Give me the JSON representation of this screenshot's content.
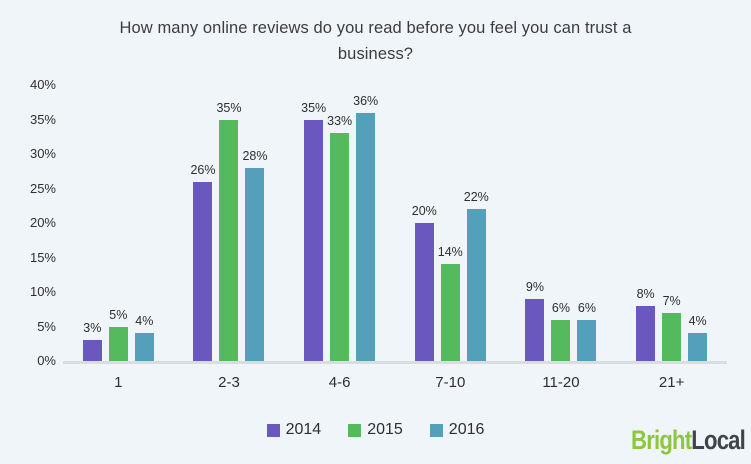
{
  "chart_data": {
    "type": "bar",
    "title": "How many online reviews do you read before you feel you can trust a business?",
    "categories": [
      "1",
      "2-3",
      "4-6",
      "7-10",
      "11-20",
      "21+"
    ],
    "series": [
      {
        "name": "2014",
        "color": "#6A58BE",
        "values": [
          3,
          26,
          35,
          20,
          9,
          8
        ]
      },
      {
        "name": "2015",
        "color": "#55BA5D",
        "values": [
          5,
          35,
          33,
          14,
          6,
          7
        ]
      },
      {
        "name": "2016",
        "color": "#549FBA",
        "values": [
          4,
          28,
          36,
          22,
          6,
          4
        ]
      }
    ],
    "value_suffix": "%",
    "ylim": [
      0,
      40
    ],
    "ytick_step": 5,
    "ytick_labels": [
      "0%",
      "5%",
      "10%",
      "15%",
      "20%",
      "25%",
      "30%",
      "35%",
      "40%"
    ],
    "grid": false,
    "legend_position": "bottom",
    "data_labels": true
  },
  "colors": {
    "background": "#F0F5F9",
    "axis_line": "#DADDE0",
    "text": "#2E2E2E",
    "title_text": "#3C3C3C"
  },
  "branding": {
    "logo_bright": "Bright",
    "logo_local": "Local",
    "logo_bright_color": "#8DC63F",
    "logo_local_color": "#3F444A"
  }
}
